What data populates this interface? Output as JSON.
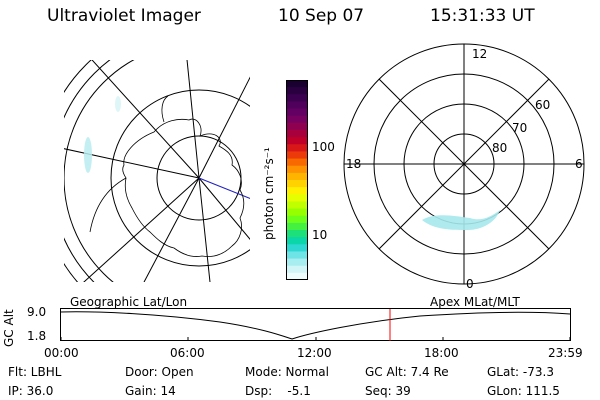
{
  "header": {
    "instrument": "Ultraviolet Imager",
    "date": "10 Sep 07",
    "time": "15:31:33 UT"
  },
  "colorbar": {
    "unit_label": "photon cm⁻²s⁻¹",
    "tick_labels": [
      "100",
      "10"
    ],
    "colors": [
      "#1a0030",
      "#2a0040",
      "#3c0050",
      "#50005c",
      "#640064",
      "#780060",
      "#900050",
      "#a8003c",
      "#c00028",
      "#d81818",
      "#ec3a0a",
      "#f86a00",
      "#ff9200",
      "#ffb400",
      "#ffd200",
      "#fff000",
      "#e6ff00",
      "#c0ff00",
      "#96ff00",
      "#6cff1a",
      "#44f040",
      "#1ee07a",
      "#0ad6aa",
      "#2ed8d2",
      "#6ee4e6",
      "#a8eef0",
      "#d2f6f8",
      "#eefcfc"
    ]
  },
  "polar_plot": {
    "mlt_labels": [
      "12",
      "18",
      "6",
      "0"
    ],
    "mlat_labels": [
      "60",
      "70",
      "80"
    ]
  },
  "timeline": {
    "ylabel": "GC Alt",
    "y_ticks": [
      "9.0",
      "1.8"
    ],
    "left_title": "Geographic Lat/Lon",
    "right_title": "Apex MLat/MLT",
    "x_ticks": [
      "00:00",
      "06:00",
      "12:00",
      "18:00",
      "23:59"
    ],
    "marker_color": "#ff0000"
  },
  "info": {
    "filter": "Flt: LBHL",
    "door": "Door: Open",
    "mode": "Mode: Normal",
    "gc_alt": "GC Alt: 7.4 Re",
    "glat": "GLat: -73.3",
    "ip": "IP: 36.0",
    "gain": "Gain: 14",
    "dsp": "Dsp:    -5.1",
    "seq": "Seq: 39",
    "glon": "GLon: 111.5"
  }
}
